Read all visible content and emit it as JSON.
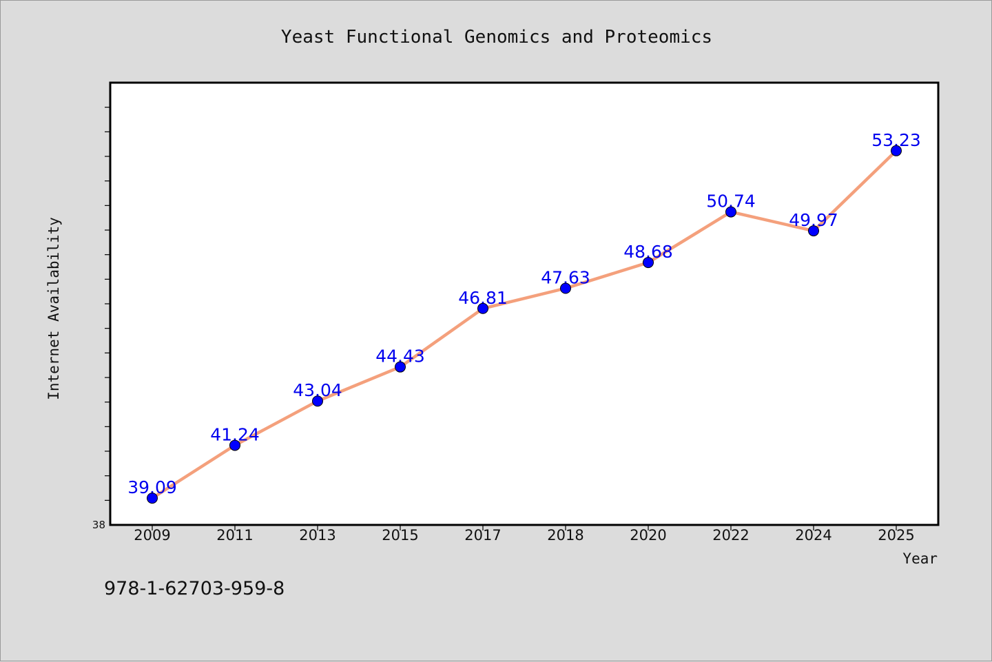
{
  "chart_data": {
    "type": "line",
    "title": "Yeast Functional Genomics and Proteomics",
    "xlabel": "Year",
    "ylabel": "Internet Availability",
    "categories": [
      "2009",
      "2011",
      "2013",
      "2015",
      "2017",
      "2018",
      "2020",
      "2022",
      "2024",
      "2025"
    ],
    "series": [
      {
        "values": [
          39.09,
          41.24,
          43.04,
          44.43,
          46.81,
          47.63,
          48.68,
          50.74,
          49.97,
          53.23
        ]
      }
    ],
    "data_labels": [
      "39.09",
      "41.24",
      "43.04",
      "44.43",
      "46.81",
      "47.63",
      "48.68",
      "50.74",
      "49.97",
      "53.23"
    ],
    "ylim": [
      38,
      56
    ],
    "y_tick_labels": [
      "38"
    ],
    "grid": false,
    "legend": "none"
  },
  "footer": {
    "isbn": "978-1-62703-959-8"
  },
  "colors": {
    "background": "#dcdcdc",
    "plot_background": "#ffffff",
    "line": "#f4a07c",
    "marker": "#0000ff",
    "data_label": "#0000ee"
  }
}
